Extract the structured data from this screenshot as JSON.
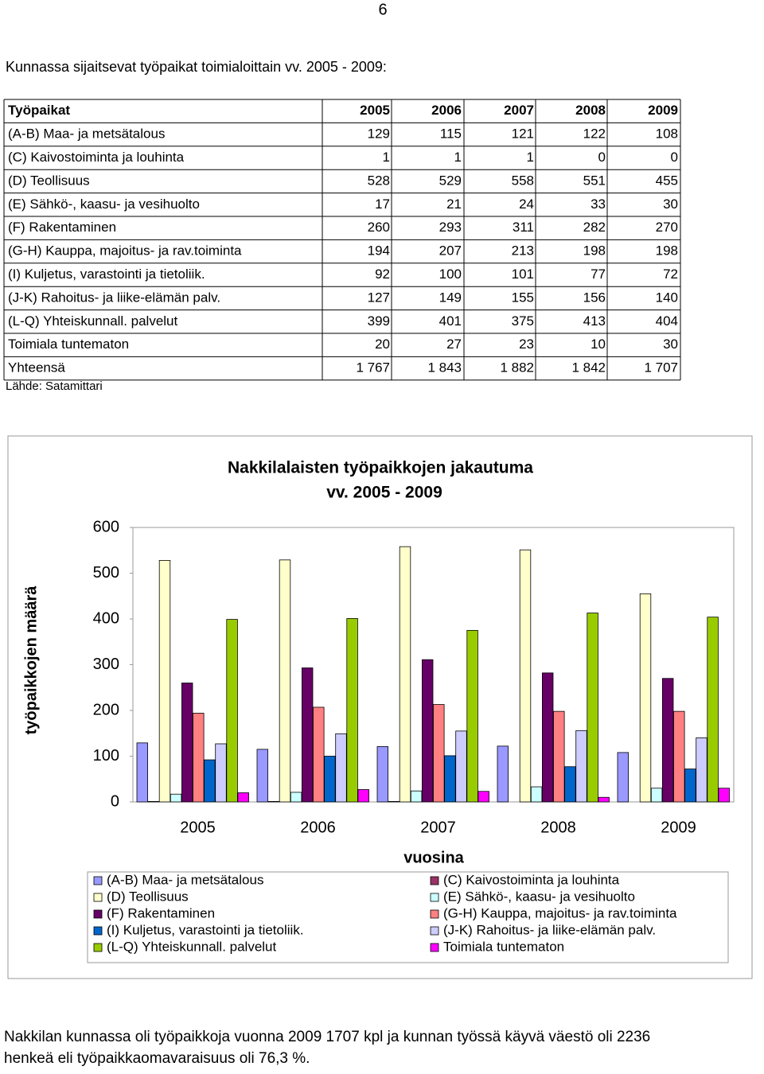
{
  "page_number": "6",
  "intro": "Kunnassa sijaitsevat työpaikat toimialoittain vv. 2005 - 2009:",
  "table": {
    "header": [
      "Työpaikat",
      "2005",
      "2006",
      "2007",
      "2008",
      "2009"
    ],
    "rows": [
      [
        "(A-B) Maa- ja metsätalous",
        "129",
        "115",
        "121",
        "122",
        "108"
      ],
      [
        "(C) Kaivostoiminta ja louhinta",
        "1",
        "1",
        "1",
        "0",
        "0"
      ],
      [
        "(D) Teollisuus",
        "528",
        "529",
        "558",
        "551",
        "455"
      ],
      [
        "(E) Sähkö-, kaasu- ja vesihuolto",
        "17",
        "21",
        "24",
        "33",
        "30"
      ],
      [
        "(F) Rakentaminen",
        "260",
        "293",
        "311",
        "282",
        "270"
      ],
      [
        "(G-H) Kauppa, majoitus- ja rav.toiminta",
        "194",
        "207",
        "213",
        "198",
        "198"
      ],
      [
        "(I) Kuljetus, varastointi ja tietoliik.",
        "92",
        "100",
        "101",
        "77",
        "72"
      ],
      [
        "(J-K) Rahoitus- ja liike-elämän palv.",
        "127",
        "149",
        "155",
        "156",
        "140"
      ],
      [
        "(L-Q) Yhteiskunnall. palvelut",
        "399",
        "401",
        "375",
        "413",
        "404"
      ],
      [
        "Toimiala tuntematon",
        "20",
        "27",
        "23",
        "10",
        "30"
      ],
      [
        "Yhteensä",
        "1 767",
        "1 843",
        "1 882",
        "1 842",
        "1 707"
      ]
    ],
    "source": "Lähde: Satamittari"
  },
  "chart_data": {
    "type": "bar",
    "title": "Nakkilalaisten työpaikkojen jakautuma",
    "subtitle": "vv. 2005 - 2009",
    "y_label": "työpaikkojen määrä",
    "x_label": "vuosina",
    "categories": [
      "2005",
      "2006",
      "2007",
      "2008",
      "2009"
    ],
    "ylim": [
      0,
      600
    ],
    "yticks": [
      0,
      100,
      200,
      300,
      400,
      500,
      600
    ],
    "series": [
      {
        "name": "(A-B) Maa- ja metsätalous",
        "color": "#9999ff",
        "values": [
          129,
          115,
          121,
          122,
          108
        ]
      },
      {
        "name": "(C) Kaivostoiminta ja louhinta",
        "color": "#993366",
        "values": [
          1,
          1,
          1,
          0,
          0
        ]
      },
      {
        "name": "(D) Teollisuus",
        "color": "#ffffcc",
        "values": [
          528,
          529,
          558,
          551,
          455
        ]
      },
      {
        "name": "(E) Sähkö-, kaasu- ja vesihuolto",
        "color": "#ccffff",
        "values": [
          17,
          21,
          24,
          33,
          30
        ]
      },
      {
        "name": "(F) Rakentaminen",
        "color": "#660066",
        "values": [
          260,
          293,
          311,
          282,
          270
        ]
      },
      {
        "name": "(G-H) Kauppa, majoitus- ja rav.toiminta",
        "color": "#ff8080",
        "values": [
          194,
          207,
          213,
          198,
          198
        ]
      },
      {
        "name": "(I) Kuljetus, varastointi ja tietoliik.",
        "color": "#0066cc",
        "values": [
          92,
          100,
          101,
          77,
          72
        ]
      },
      {
        "name": "(J-K) Rahoitus- ja liike-elämän palv.",
        "color": "#ccccff",
        "values": [
          127,
          149,
          155,
          156,
          140
        ]
      },
      {
        "name": "(L-Q) Yhteiskunnall. palvelut",
        "color": "#99cc00",
        "values": [
          399,
          401,
          375,
          413,
          404
        ]
      },
      {
        "name": "Toimiala tuntematon",
        "color": "#ff00ff",
        "values": [
          20,
          27,
          23,
          10,
          30
        ]
      }
    ]
  },
  "footer": [
    "Nakkilan kunnassa oli työpaikkoja vuonna 2009  1707 kpl ja kunnan työssä käyvä väestö oli 2236",
    "henkeä eli työpaikkaomavaraisuus oli 76,3 %."
  ]
}
